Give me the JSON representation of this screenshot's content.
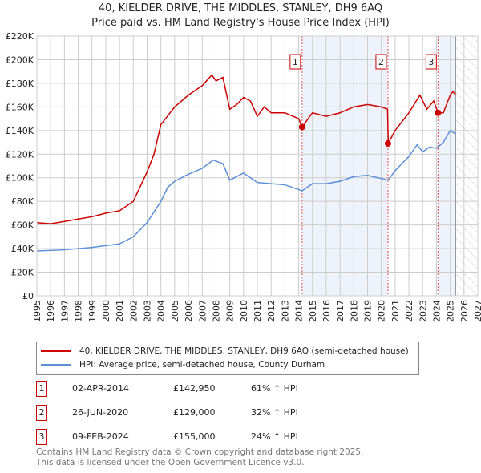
{
  "chart_data": {
    "type": "line",
    "title": "40, KIELDER DRIVE, THE MIDDLES, STANLEY, DH9 6AQ",
    "subtitle": "Price paid vs. HM Land Registry's House Price Index (HPI)",
    "xlim": [
      1995,
      2027
    ],
    "ylim": [
      0,
      220000
    ],
    "x_ticks": [
      "1995",
      "1996",
      "1997",
      "1998",
      "1999",
      "2000",
      "2001",
      "2002",
      "2003",
      "2004",
      "2005",
      "2006",
      "2007",
      "2008",
      "2009",
      "2010",
      "2011",
      "2012",
      "2013",
      "2014",
      "2015",
      "2016",
      "2017",
      "2018",
      "2019",
      "2020",
      "2021",
      "2022",
      "2023",
      "2024",
      "2025",
      "2026",
      "2027"
    ],
    "y_ticks": [
      {
        "v": 0,
        "label": "£0"
      },
      {
        "v": 20000,
        "label": "£20K"
      },
      {
        "v": 40000,
        "label": "£40K"
      },
      {
        "v": 60000,
        "label": "£60K"
      },
      {
        "v": 80000,
        "label": "£80K"
      },
      {
        "v": 100000,
        "label": "£100K"
      },
      {
        "v": 120000,
        "label": "£120K"
      },
      {
        "v": 140000,
        "label": "£140K"
      },
      {
        "v": 160000,
        "label": "£160K"
      },
      {
        "v": 180000,
        "label": "£180K"
      },
      {
        "v": 200000,
        "label": "£200K"
      },
      {
        "v": 220000,
        "label": "£220K"
      }
    ],
    "grid": true,
    "shaded_ranges": [
      [
        2014.25,
        2020.48
      ],
      [
        2024.11,
        2025.4
      ]
    ],
    "future_hatch_from": 2025.4,
    "series": [
      {
        "name": "40, KIELDER DRIVE, THE MIDDLES, STANLEY, DH9 6AQ (semi-detached house)",
        "color": "#cc0000",
        "x": [
          1995,
          1996,
          1997,
          1998,
          1999,
          2000,
          2001,
          2002,
          2003,
          2003.5,
          2004,
          2005,
          2006,
          2007,
          2007.7,
          2008,
          2008.5,
          2009,
          2009.5,
          2010,
          2010.5,
          2011,
          2011.5,
          2012,
          2013,
          2014,
          2014.25,
          2015,
          2016,
          2017,
          2018,
          2019,
          2020,
          2020.45,
          2020.5,
          2021,
          2022,
          2022.8,
          2023.3,
          2023.8,
          2024.11,
          2024.5,
          2025,
          2025.2,
          2025.4
        ],
        "y": [
          62000,
          61000,
          63000,
          65000,
          67000,
          70000,
          72000,
          80000,
          105000,
          120000,
          145000,
          160000,
          170000,
          178000,
          187000,
          182000,
          185000,
          158000,
          162000,
          168000,
          165000,
          152000,
          160000,
          155000,
          155000,
          150000,
          142950,
          155000,
          152000,
          155000,
          160000,
          162000,
          160000,
          158000,
          129000,
          140000,
          155000,
          170000,
          158000,
          165000,
          155000,
          155000,
          170000,
          173000,
          170000
        ]
      },
      {
        "name": "HPI: Average price, semi-detached house, County Durham",
        "color": "#5b8fd6",
        "x": [
          1995,
          1997,
          1999,
          2001,
          2002,
          2003,
          2004,
          2004.5,
          2005,
          2006,
          2007,
          2007.8,
          2008.5,
          2009,
          2010,
          2011,
          2012,
          2013,
          2014.25,
          2015,
          2016,
          2017,
          2018,
          2019,
          2020.5,
          2021,
          2022,
          2022.6,
          2023,
          2023.5,
          2024,
          2024.5,
          2025,
          2025.4
        ],
        "y": [
          38000,
          39000,
          41000,
          44000,
          50000,
          62000,
          80000,
          92000,
          97000,
          103000,
          108000,
          115000,
          112000,
          98000,
          104000,
          96000,
          95000,
          94000,
          89000,
          95000,
          95000,
          97000,
          101000,
          102000,
          98000,
          106000,
          118000,
          128000,
          122000,
          126000,
          125000,
          130000,
          140000,
          137000
        ]
      }
    ],
    "markers": [
      {
        "label": "1",
        "x": 2014.25,
        "y": 142950
      },
      {
        "label": "2",
        "x": 2020.48,
        "y": 129000
      },
      {
        "label": "3",
        "x": 2024.11,
        "y": 155000
      }
    ]
  },
  "legend": [
    "40, KIELDER DRIVE, THE MIDDLES, STANLEY, DH9 6AQ (semi-detached house)",
    "HPI: Average price, semi-detached house, County Durham"
  ],
  "transactions": [
    {
      "n": "1",
      "date": "02-APR-2014",
      "price": "£142,950",
      "hpi": "61% ↑ HPI"
    },
    {
      "n": "2",
      "date": "26-JUN-2020",
      "price": "£129,000",
      "hpi": "32% ↑ HPI"
    },
    {
      "n": "3",
      "date": "09-FEB-2024",
      "price": "£155,000",
      "hpi": "24% ↑ HPI"
    }
  ],
  "footer": [
    "Contains HM Land Registry data © Crown copyright and database right 2025.",
    "This data is licensed under the Open Government Licence v3.0."
  ]
}
